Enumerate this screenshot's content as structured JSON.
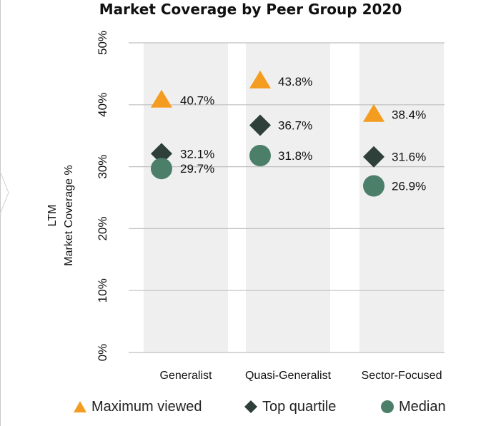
{
  "chart_data": {
    "type": "scatter",
    "title": "Market Coverage by Peer Group 2020",
    "ylabel": [
      "LTM",
      "Market Coverage %"
    ],
    "xlabel": "",
    "categories": [
      "Generalist",
      "Quasi-Generalist",
      "Sector-Focused"
    ],
    "ylim": [
      0,
      50
    ],
    "yticks": [
      0,
      10,
      20,
      30,
      40,
      50
    ],
    "ytick_labels": [
      "0%",
      "10%",
      "20%",
      "30%",
      "40%",
      "50%"
    ],
    "grid": true,
    "legend_position": "bottom",
    "series": [
      {
        "name": "Maximum viewed",
        "marker": "triangle",
        "color": "#f39c1f",
        "values": [
          40.7,
          43.8,
          38.4
        ],
        "labels": [
          "40.7%",
          "43.8%",
          "38.4%"
        ]
      },
      {
        "name": "Top quartile",
        "marker": "diamond",
        "color": "#2f3f3a",
        "values": [
          32.1,
          36.7,
          31.6
        ],
        "labels": [
          "32.1%",
          "36.7%",
          "31.6%"
        ]
      },
      {
        "name": "Median",
        "marker": "circle",
        "color": "#4b7f69",
        "values": [
          29.7,
          31.8,
          26.9
        ],
        "labels": [
          "29.7%",
          "31.8%",
          "26.9%"
        ]
      }
    ],
    "band_color": "#efefef",
    "grid_color": "#bfbfbf"
  },
  "legend": {
    "items": [
      {
        "label": "Maximum viewed",
        "marker": "triangle",
        "color": "#f39c1f"
      },
      {
        "label": "Top quartile",
        "marker": "diamond",
        "color": "#2f3f3a"
      },
      {
        "label": "Median",
        "marker": "circle",
        "color": "#4b7f69"
      }
    ]
  }
}
